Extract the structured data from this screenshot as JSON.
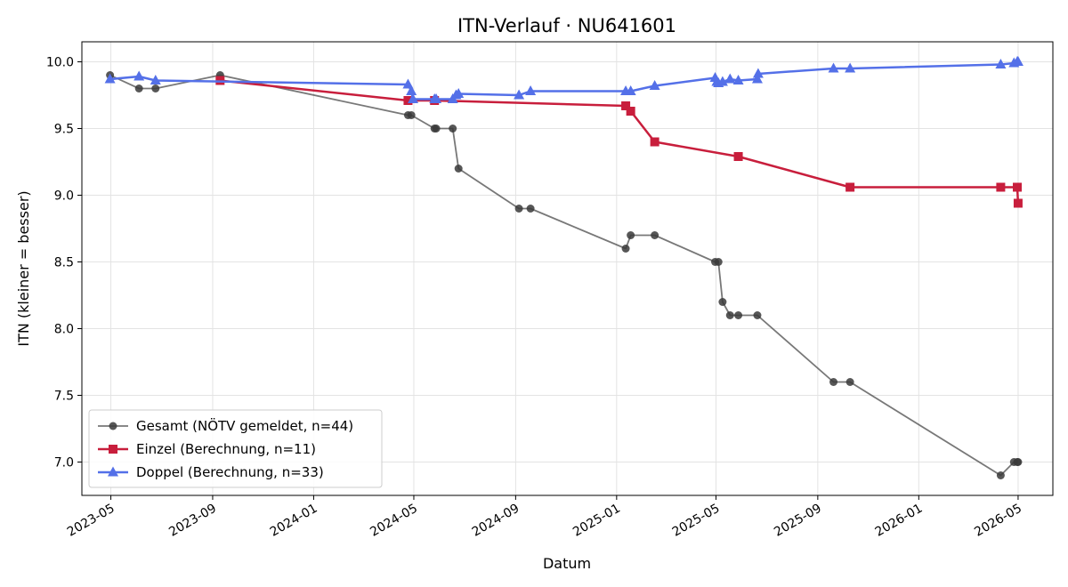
{
  "chart_data": {
    "type": "line",
    "title": "ITN-Verlauf · NU641601",
    "xlabel": "Datum",
    "ylabel": "ITN  (kleiner = besser)",
    "xlim": [
      "2023-03-27",
      "2026-06-12"
    ],
    "ylim": [
      6.75,
      10.15
    ],
    "x_ticks": [
      "2023-05",
      "2023-09",
      "2024-01",
      "2024-05",
      "2024-09",
      "2025-01",
      "2025-05",
      "2025-09",
      "2026-01",
      "2026-05"
    ],
    "y_ticks": [
      "7.0",
      "7.5",
      "8.0",
      "8.5",
      "9.0",
      "9.5",
      "10.0"
    ],
    "grid": true,
    "legend_position": "lower-left",
    "series": [
      {
        "name": "Gesamt (NÖTV gemeldet, n=44)",
        "color": "#444444",
        "marker": "circle",
        "points": [
          [
            "2023-04-30",
            9.9
          ],
          [
            "2023-06-04",
            9.8
          ],
          [
            "2023-06-24",
            9.8
          ],
          [
            "2023-09-10",
            9.9
          ],
          [
            "2024-04-24",
            9.6
          ],
          [
            "2024-04-28",
            9.6
          ],
          [
            "2024-05-26",
            9.5
          ],
          [
            "2024-05-28",
            9.5
          ],
          [
            "2024-06-17",
            9.5
          ],
          [
            "2024-06-24",
            9.2
          ],
          [
            "2024-09-05",
            8.9
          ],
          [
            "2024-09-19",
            8.9
          ],
          [
            "2025-01-12",
            8.6
          ],
          [
            "2025-01-18",
            8.7
          ],
          [
            "2025-02-16",
            8.7
          ],
          [
            "2025-04-30",
            8.5
          ],
          [
            "2025-05-04",
            8.5
          ],
          [
            "2025-05-09",
            8.2
          ],
          [
            "2025-05-18",
            8.1
          ],
          [
            "2025-05-28",
            8.1
          ],
          [
            "2025-06-20",
            8.1
          ],
          [
            "2025-09-20",
            7.6
          ],
          [
            "2025-10-10",
            7.6
          ],
          [
            "2026-04-10",
            6.9
          ],
          [
            "2026-04-26",
            7.0
          ],
          [
            "2026-04-30",
            7.0
          ],
          [
            "2026-05-01",
            7.0
          ]
        ]
      },
      {
        "name": "Einzel (Berechnung, n=11)",
        "color": "#c81e3c",
        "marker": "square",
        "points": [
          [
            "2023-09-10",
            9.86
          ],
          [
            "2024-04-24",
            9.71
          ],
          [
            "2024-05-26",
            9.71
          ],
          [
            "2025-01-12",
            9.67
          ],
          [
            "2025-01-18",
            9.63
          ],
          [
            "2025-02-16",
            9.4
          ],
          [
            "2025-05-28",
            9.29
          ],
          [
            "2025-10-10",
            9.06
          ],
          [
            "2026-04-10",
            9.06
          ],
          [
            "2026-04-30",
            9.06
          ],
          [
            "2026-05-01",
            8.94
          ]
        ]
      },
      {
        "name": "Doppel (Berechnung, n=33)",
        "color": "#5470e8",
        "marker": "triangle",
        "points": [
          [
            "2023-04-30",
            9.87
          ],
          [
            "2023-06-04",
            9.89
          ],
          [
            "2023-06-24",
            9.86
          ],
          [
            "2024-04-24",
            9.83
          ],
          [
            "2024-04-28",
            9.78
          ],
          [
            "2024-04-30",
            9.72
          ],
          [
            "2024-05-26",
            9.72
          ],
          [
            "2024-05-28",
            9.72
          ],
          [
            "2024-06-17",
            9.72
          ],
          [
            "2024-06-21",
            9.75
          ],
          [
            "2024-06-24",
            9.76
          ],
          [
            "2024-09-05",
            9.75
          ],
          [
            "2024-09-19",
            9.78
          ],
          [
            "2025-01-12",
            9.78
          ],
          [
            "2025-01-18",
            9.78
          ],
          [
            "2025-02-16",
            9.82
          ],
          [
            "2025-04-30",
            9.88
          ],
          [
            "2025-05-02",
            9.85
          ],
          [
            "2025-05-04",
            9.84
          ],
          [
            "2025-05-09",
            9.85
          ],
          [
            "2025-05-18",
            9.87
          ],
          [
            "2025-05-28",
            9.86
          ],
          [
            "2025-06-20",
            9.87
          ],
          [
            "2025-06-21",
            9.91
          ],
          [
            "2025-09-20",
            9.95
          ],
          [
            "2025-10-10",
            9.95
          ],
          [
            "2026-04-10",
            9.98
          ],
          [
            "2026-04-26",
            9.99
          ],
          [
            "2026-04-30",
            10.0
          ],
          [
            "2026-05-01",
            10.0
          ]
        ]
      }
    ]
  }
}
